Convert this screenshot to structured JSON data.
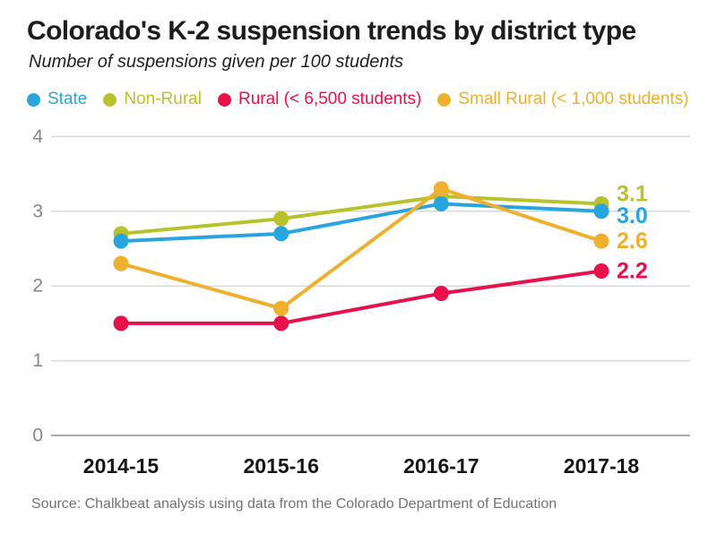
{
  "header": {
    "title": "Colorado's K-2 suspension trends by district type",
    "subtitle": "Number of suspensions given per 100 students"
  },
  "legend": {
    "items": [
      {
        "label": "State",
        "color": "#29A5DD"
      },
      {
        "label": "Non-Rural",
        "color": "#B8C32C"
      },
      {
        "label": "Rural (< 6,500 students)",
        "color": "#E8114B"
      },
      {
        "label": "Small Rural (< 1,000 students)",
        "color": "#F0B02F"
      }
    ]
  },
  "chart_data": {
    "type": "line",
    "title": "Colorado's K-2 suspension trends by district type",
    "subtitle": "Number of suspensions given per 100 students",
    "categories": [
      "2014-15",
      "2015-16",
      "2016-17",
      "2017-18"
    ],
    "series": [
      {
        "name": "State",
        "color": "#29A5DD",
        "values": [
          2.6,
          2.7,
          3.1,
          3.0
        ],
        "end_label": "3.0"
      },
      {
        "name": "Non-Rural",
        "color": "#B8C32C",
        "values": [
          2.7,
          2.9,
          3.2,
          3.1
        ],
        "end_label": "3.1"
      },
      {
        "name": "Rural (< 6,500 students)",
        "color": "#E8114B",
        "values": [
          1.5,
          1.5,
          1.9,
          2.2
        ],
        "end_label": "2.2"
      },
      {
        "name": "Small Rural (< 1,000 students)",
        "color": "#F0B02F",
        "values": [
          2.3,
          1.7,
          3.3,
          2.6
        ],
        "end_label": "2.6"
      }
    ],
    "y_ticks": [
      0,
      1,
      2,
      3,
      4
    ],
    "ylim": [
      0,
      4
    ],
    "grid": true,
    "legend_position": "top",
    "colors": {
      "gridline": "#d9d9d9",
      "zero_line": "#a9a9a9",
      "y_tick_label": "#87878c",
      "x_tick_label": "#161616"
    }
  },
  "footer": {
    "source": "Source: Chalkbeat analysis using data from the Colorado Department of Education"
  }
}
